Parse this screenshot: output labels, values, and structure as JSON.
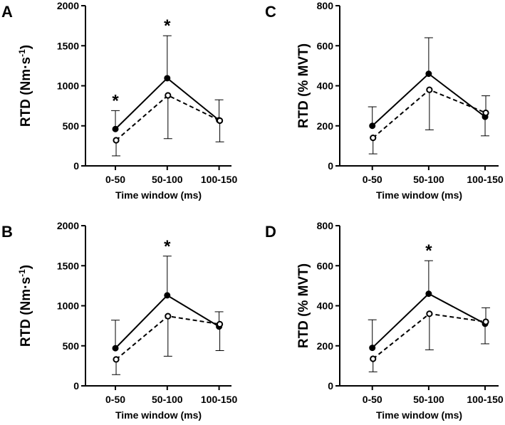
{
  "chart_data": [
    {
      "panel": "A",
      "type": "line",
      "xlabel": "Time window (ms)",
      "ylabel": "RTD (Nm·s",
      "ylabel_sup": "-1",
      "ylabel_close": ")",
      "categories": [
        "0-50",
        "50-100",
        "100-150"
      ],
      "ylim": [
        0,
        2000
      ],
      "yticks": [
        0,
        500,
        1000,
        1500,
        2000
      ],
      "series": [
        {
          "name": "solid",
          "style": "solid",
          "marker": "filled",
          "values": [
            460,
            1095,
            570
          ],
          "err_up": [
            230,
            530,
            255
          ],
          "err_down": [
            0,
            0,
            0
          ]
        },
        {
          "name": "dashed",
          "style": "dashed",
          "marker": "open",
          "values": [
            320,
            880,
            565
          ],
          "err_up": [
            0,
            0,
            0
          ],
          "err_down": [
            195,
            540,
            265
          ]
        }
      ],
      "significance": [
        "*",
        "*",
        ""
      ]
    },
    {
      "panel": "C",
      "type": "line",
      "xlabel": "Time window (ms)",
      "ylabel": "RTD (% MVT)",
      "categories": [
        "0-50",
        "50-100",
        "100-150"
      ],
      "ylim": [
        0,
        800
      ],
      "yticks": [
        0,
        200,
        400,
        600,
        800
      ],
      "series": [
        {
          "name": "solid",
          "style": "solid",
          "marker": "filled",
          "values": [
            200,
            460,
            245
          ],
          "err_up": [
            95,
            180,
            0
          ],
          "err_down": [
            0,
            0,
            95
          ]
        },
        {
          "name": "dashed",
          "style": "dashed",
          "marker": "open",
          "values": [
            140,
            380,
            265
          ],
          "err_up": [
            0,
            0,
            85
          ],
          "err_down": [
            80,
            200,
            0
          ]
        }
      ],
      "significance": [
        "",
        "",
        ""
      ]
    },
    {
      "panel": "B",
      "type": "line",
      "xlabel": "Time window (ms)",
      "ylabel": "RTD (Nm·s",
      "ylabel_sup": "-1",
      "ylabel_close": ")",
      "categories": [
        "0-50",
        "50-100",
        "100-150"
      ],
      "ylim": [
        0,
        2000
      ],
      "yticks": [
        0,
        500,
        1000,
        1500,
        2000
      ],
      "series": [
        {
          "name": "solid",
          "style": "solid",
          "marker": "filled",
          "values": [
            470,
            1130,
            740
          ],
          "err_up": [
            350,
            490,
            185
          ],
          "err_down": [
            0,
            0,
            0
          ]
        },
        {
          "name": "dashed",
          "style": "dashed",
          "marker": "open",
          "values": [
            330,
            870,
            770
          ],
          "err_up": [
            0,
            0,
            0
          ],
          "err_down": [
            190,
            500,
            330
          ]
        }
      ],
      "significance": [
        "",
        "*",
        ""
      ]
    },
    {
      "panel": "D",
      "type": "line",
      "xlabel": "Time window (ms)",
      "ylabel": "RTD (% MVT)",
      "categories": [
        "0-50",
        "50-100",
        "100-150"
      ],
      "ylim": [
        0,
        800
      ],
      "yticks": [
        0,
        200,
        400,
        600,
        800
      ],
      "series": [
        {
          "name": "solid",
          "style": "solid",
          "marker": "filled",
          "values": [
            190,
            460,
            310
          ],
          "err_up": [
            140,
            165,
            0
          ],
          "err_down": [
            0,
            0,
            100
          ]
        },
        {
          "name": "dashed",
          "style": "dashed",
          "marker": "open",
          "values": [
            135,
            360,
            320
          ],
          "err_up": [
            0,
            0,
            70
          ],
          "err_down": [
            65,
            180,
            0
          ]
        }
      ],
      "significance": [
        "",
        "*",
        ""
      ]
    }
  ]
}
